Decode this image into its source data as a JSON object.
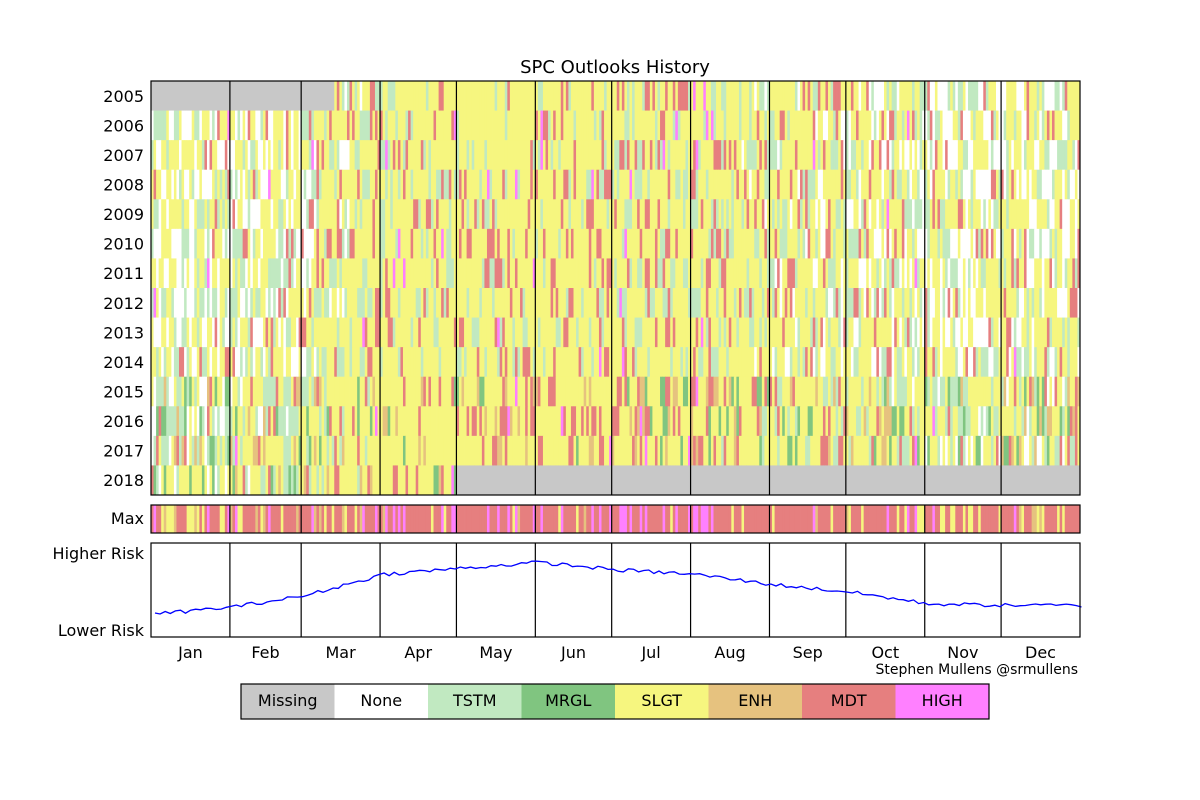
{
  "chart_data": {
    "type": "heatmap",
    "title": "SPC Outlooks History",
    "years": [
      "2005",
      "2006",
      "2007",
      "2008",
      "2009",
      "2010",
      "2011",
      "2012",
      "2013",
      "2014",
      "2015",
      "2016",
      "2017",
      "2018"
    ],
    "max_row_label": "Max",
    "months": [
      "Jan",
      "Feb",
      "Mar",
      "Apr",
      "May",
      "Jun",
      "Jul",
      "Aug",
      "Sep",
      "Oct",
      "Nov",
      "Dec"
    ],
    "month_lengths": [
      31,
      28,
      31,
      30,
      31,
      30,
      31,
      31,
      30,
      31,
      30,
      31
    ],
    "risk_axis": {
      "top_label": "Higher Risk",
      "bottom_label": "Lower Risk"
    },
    "risk_profile": [
      {
        "month": "Jan",
        "value": 0.2
      },
      {
        "month": "Feb",
        "value": 0.3
      },
      {
        "month": "Mar",
        "value": 0.45
      },
      {
        "month": "Apr",
        "value": 0.74
      },
      {
        "month": "May",
        "value": 0.82
      },
      {
        "month": "Jun",
        "value": 0.9
      },
      {
        "month": "Jul",
        "value": 0.8
      },
      {
        "month": "Aug",
        "value": 0.74
      },
      {
        "month": "Sep",
        "value": 0.6
      },
      {
        "month": "Oct",
        "value": 0.5
      },
      {
        "month": "Nov",
        "value": 0.34
      },
      {
        "month": "Dec",
        "value": 0.32
      }
    ],
    "categories": [
      {
        "label": "Missing",
        "color": "#c8c8c8"
      },
      {
        "label": "None",
        "color": "#ffffff"
      },
      {
        "label": "TSTM",
        "color": "#c1e9c1"
      },
      {
        "label": "MRGL",
        "color": "#80c580"
      },
      {
        "label": "SLGT",
        "color": "#f6f67f"
      },
      {
        "label": "ENH",
        "color": "#e6c27f"
      },
      {
        "label": "MDT",
        "color": "#e67f7f"
      },
      {
        "label": "HIGH",
        "color": "#ff80ff"
      }
    ],
    "legend_position": "bottom-center"
  },
  "credit": "Stephen Mullens @srmullens"
}
